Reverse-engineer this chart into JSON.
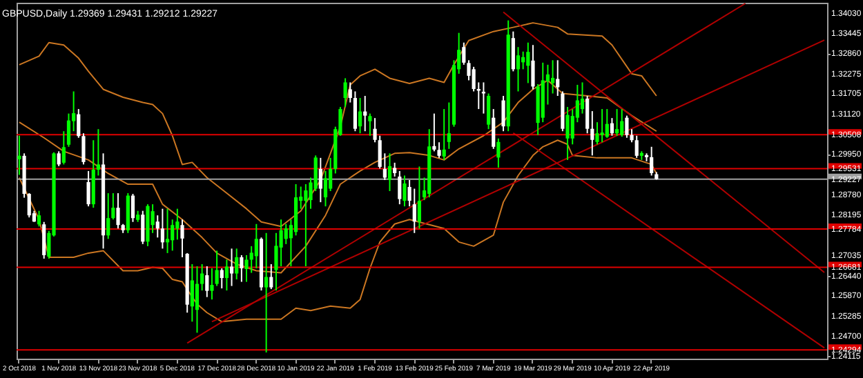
{
  "chart_data": {
    "type": "candlestick",
    "title": "GBPUSD,Daily  1.29369 1.29431 1.29212 1.29227",
    "categories": [
      "2 Oct 2018",
      null,
      null,
      null,
      null,
      null,
      null,
      null,
      "1 Nov 2018",
      null,
      null,
      null,
      null,
      null,
      null,
      null,
      "13 Nov 2018",
      null,
      null,
      null,
      null,
      null,
      null,
      null,
      "23 Nov 2018",
      null,
      null,
      null,
      null,
      null,
      null,
      null,
      "5 Dec 2018",
      null,
      null,
      null,
      null,
      null,
      null,
      null,
      "17 Dec 2018",
      null,
      null,
      null,
      null,
      null,
      null,
      null,
      "28 Dec 2018",
      null,
      null,
      null,
      null,
      null,
      null,
      null,
      "10 Jan 2019",
      null,
      null,
      null,
      null,
      null,
      null,
      null,
      "22 Jan 2019",
      null,
      null,
      null,
      null,
      null,
      null,
      null,
      "1 Feb 2019",
      null,
      null,
      null,
      null,
      null,
      null,
      null,
      "13 Feb 2019",
      null,
      null,
      null,
      null,
      null,
      null,
      null,
      "25 Feb 2019",
      null,
      null,
      null,
      null,
      null,
      null,
      null,
      "7 Mar 2019",
      null,
      null,
      null,
      null,
      null,
      null,
      null,
      "19 Mar 2019",
      null,
      null,
      null,
      null,
      null,
      null,
      null,
      "29 Mar 2019",
      null,
      null,
      null,
      null,
      null,
      null,
      null,
      "10 Apr 2019",
      null,
      null,
      null,
      null,
      null,
      null,
      null,
      "22 Apr 2019",
      null,
      null,
      null,
      null,
      null,
      null,
      null,
      null,
      null,
      null,
      null,
      null,
      null,
      null,
      null,
      null,
      null,
      null,
      null,
      null,
      null,
      null,
      null,
      null,
      null,
      null,
      null,
      null,
      null,
      null,
      null,
      null,
      null,
      null,
      null
    ],
    "ohlc": [
      [
        1.298,
        1.3048,
        1.2935,
        1.299
      ],
      [
        1.299,
        1.2997,
        1.2869,
        1.288
      ],
      [
        1.288,
        1.2882,
        1.2812,
        1.2818
      ],
      [
        1.2824,
        1.2831,
        1.2799,
        1.28
      ],
      [
        1.2792,
        1.2831,
        1.2786,
        1.2818
      ],
      [
        1.2792,
        1.2799,
        1.2693,
        1.2703
      ],
      [
        1.2699,
        1.2773,
        1.2693,
        1.2767
      ],
      [
        1.276,
        1.3,
        1.2757,
        1.2997
      ],
      [
        1.2997,
        1.3003,
        1.296,
        1.2965
      ],
      [
        1.297,
        1.3061,
        1.2965,
        1.3015
      ],
      [
        1.3022,
        1.3112,
        1.3016,
        1.3092
      ],
      [
        1.309,
        1.3176,
        1.3061,
        1.3113
      ],
      [
        1.311,
        1.3125,
        1.3042,
        1.3047
      ],
      [
        1.3047,
        1.3055,
        1.2965,
        1.2972
      ],
      [
        1.2914,
        1.2946,
        1.2844,
        1.285
      ],
      [
        1.285,
        1.3035,
        1.284,
        1.295
      ],
      [
        1.295,
        1.3067,
        1.2933,
        1.2965
      ],
      [
        1.2965,
        1.2997,
        1.2722,
        1.276
      ],
      [
        1.276,
        1.2882,
        1.275,
        1.281
      ],
      [
        1.281,
        1.2882,
        1.2806,
        1.284
      ],
      [
        1.284,
        1.2882,
        1.278,
        1.279
      ],
      [
        1.279,
        1.2793,
        1.2767,
        1.2775
      ],
      [
        1.2775,
        1.2882,
        1.2767,
        1.2875
      ],
      [
        1.2875,
        1.288,
        1.2799,
        1.281
      ],
      [
        1.2805,
        1.2831,
        1.2799,
        1.282
      ],
      [
        1.282,
        1.2831,
        1.2735,
        1.2742
      ],
      [
        1.2742,
        1.285,
        1.2729,
        1.2845
      ],
      [
        1.279,
        1.285,
        1.2767,
        1.283
      ],
      [
        1.28,
        1.2818,
        1.2754,
        1.278
      ],
      [
        1.278,
        1.2837,
        1.2722,
        1.274
      ],
      [
        1.274,
        1.2837,
        1.2709,
        1.275
      ],
      [
        1.2746,
        1.2806,
        1.2716,
        1.279
      ],
      [
        1.278,
        1.2837,
        1.2748,
        1.28
      ],
      [
        1.279,
        1.2806,
        1.2697,
        1.2751
      ],
      [
        1.2707,
        1.2709,
        1.2537,
        1.256
      ],
      [
        1.2555,
        1.2677,
        1.2511,
        1.263
      ],
      [
        1.2545,
        1.2671,
        1.2479,
        1.262
      ],
      [
        1.262,
        1.2677,
        1.2601,
        1.265
      ],
      [
        1.2645,
        1.2671,
        1.2582,
        1.26
      ],
      [
        1.26,
        1.2665,
        1.2575,
        1.2617
      ],
      [
        1.262,
        1.2716,
        1.2614,
        1.266
      ],
      [
        1.266,
        1.2665,
        1.2607,
        1.2637
      ],
      [
        1.2637,
        1.269,
        1.2601,
        1.267
      ],
      [
        1.267,
        1.2722,
        1.2614,
        1.265
      ],
      [
        1.265,
        1.2722,
        1.2633,
        1.2697
      ],
      [
        1.2697,
        1.2703,
        1.2626,
        1.2665
      ],
      [
        1.2663,
        1.2703,
        1.2626,
        1.269
      ],
      [
        1.269,
        1.2729,
        1.2652,
        1.271
      ],
      [
        1.27,
        1.2793,
        1.2665,
        1.275
      ],
      [
        1.275,
        1.2754,
        1.2601,
        1.261
      ],
      [
        1.261,
        1.2767,
        1.2422,
        1.264
      ],
      [
        1.264,
        1.2677,
        1.2605,
        1.261
      ],
      [
        1.266,
        1.2767,
        1.2601,
        1.273
      ],
      [
        1.2725,
        1.2806,
        1.2671,
        1.2775
      ],
      [
        1.275,
        1.2793,
        1.2735,
        1.278
      ],
      [
        1.2752,
        1.2806,
        1.2671,
        1.279
      ],
      [
        1.277,
        1.2908,
        1.276,
        1.287
      ],
      [
        1.286,
        1.2901,
        1.2837,
        1.2872
      ],
      [
        1.286,
        1.2908,
        1.2671,
        1.289
      ],
      [
        1.2862,
        1.2927,
        1.2837,
        1.2913
      ],
      [
        1.2895,
        1.2991,
        1.2888,
        1.2985
      ],
      [
        1.2952,
        1.2984,
        1.2856,
        1.2895
      ],
      [
        1.287,
        1.2946,
        1.2844,
        1.2925
      ],
      [
        1.2895,
        1.2984,
        1.2888,
        1.2952
      ],
      [
        1.2952,
        1.3074,
        1.2939,
        1.3067
      ],
      [
        1.305,
        1.3131,
        1.3048,
        1.3125
      ],
      [
        1.3157,
        1.3214,
        1.3131,
        1.3202
      ],
      [
        1.3182,
        1.3202,
        1.3144,
        1.3157
      ],
      [
        1.3157,
        1.3176,
        1.3061,
        1.3068
      ],
      [
        1.3075,
        1.3157,
        1.3055,
        1.3118
      ],
      [
        1.3118,
        1.3163,
        1.3061,
        1.3106
      ],
      [
        1.309,
        1.3112,
        1.3048,
        1.3105
      ],
      [
        1.3068,
        1.3099,
        1.3029,
        1.3036
      ],
      [
        1.3035,
        1.3048,
        1.2953,
        1.2958
      ],
      [
        1.2952,
        1.2997,
        1.292,
        1.2927
      ],
      [
        1.292,
        1.2997,
        1.2888,
        1.296
      ],
      [
        1.2955,
        1.297,
        1.293,
        1.294
      ],
      [
        1.293,
        1.2946,
        1.285,
        1.2865
      ],
      [
        1.286,
        1.2933,
        1.2844,
        1.291
      ],
      [
        1.29,
        1.292,
        1.2844,
        1.286
      ],
      [
        1.285,
        1.2895,
        1.2767,
        1.28
      ],
      [
        1.28,
        1.2959,
        1.278,
        1.286
      ],
      [
        1.287,
        1.2927,
        1.2862,
        1.289
      ],
      [
        1.288,
        1.3067,
        1.287,
        1.3017
      ],
      [
        1.3018,
        1.3112,
        1.3003,
        1.3008
      ],
      [
        1.3007,
        1.3029,
        1.2984,
        1.299
      ],
      [
        1.2988,
        1.3125,
        1.2978,
        1.3008
      ],
      [
        1.303,
        1.3144,
        1.301,
        1.3055
      ],
      [
        1.308,
        1.3266,
        1.3074,
        1.3252
      ],
      [
        1.324,
        1.3345,
        1.3227,
        1.3296
      ],
      [
        1.3304,
        1.3317,
        1.3253,
        1.3259
      ],
      [
        1.3258,
        1.3266,
        1.3208,
        1.3221
      ],
      [
        1.324,
        1.3247,
        1.3176,
        1.3183
      ],
      [
        1.3183,
        1.3202,
        1.3125,
        1.3178
      ],
      [
        1.3175,
        1.3202,
        1.3112,
        1.317
      ],
      [
        1.308,
        1.317,
        1.3067,
        1.3163
      ],
      [
        1.31,
        1.3125,
        1.301,
        1.3016
      ],
      [
        1.2985,
        1.304,
        1.2956,
        1.303
      ],
      [
        1.315,
        1.3163,
        1.3061,
        1.3075
      ],
      [
        1.3075,
        1.3381,
        1.3061,
        1.334
      ],
      [
        1.333,
        1.3349,
        1.3234,
        1.324
      ],
      [
        1.324,
        1.3304,
        1.3176,
        1.328
      ],
      [
        1.326,
        1.3291,
        1.324,
        1.3275
      ],
      [
        1.325,
        1.3317,
        1.32,
        1.329
      ],
      [
        1.3265,
        1.331,
        1.3182,
        1.319
      ],
      [
        1.3085,
        1.3197,
        1.305,
        1.319
      ],
      [
        1.31,
        1.3259,
        1.3087,
        1.3208
      ],
      [
        1.3205,
        1.3253,
        1.3138,
        1.3225
      ],
      [
        1.32,
        1.3266,
        1.317,
        1.3215
      ],
      [
        1.3212,
        1.3266,
        1.3163,
        1.3188
      ],
      [
        1.317,
        1.3176,
        1.3061,
        1.3068
      ],
      [
        1.304,
        1.3131,
        1.2978,
        1.3108
      ],
      [
        1.304,
        1.3125,
        1.3023,
        1.3105
      ],
      [
        1.31,
        1.3195,
        1.3087,
        1.315
      ],
      [
        1.3125,
        1.3202,
        1.3112,
        1.3155
      ],
      [
        1.3155,
        1.3163,
        1.3055,
        1.3068
      ],
      [
        1.3068,
        1.3119,
        1.2991,
        1.3036
      ],
      [
        1.303,
        1.3087,
        1.3023,
        1.3055
      ],
      [
        1.305,
        1.3125,
        1.3029,
        1.3057
      ],
      [
        1.3045,
        1.3125,
        1.3042,
        1.3082
      ],
      [
        1.3084,
        1.3099,
        1.3048,
        1.3055
      ],
      [
        1.3055,
        1.3125,
        1.3048,
        1.3067
      ],
      [
        1.305,
        1.3125,
        1.3045,
        1.309
      ],
      [
        1.31,
        1.3106,
        1.3042,
        1.305
      ],
      [
        1.305,
        1.3067,
        1.3029,
        1.3035
      ],
      [
        1.3035,
        1.3048,
        1.2984,
        1.299
      ],
      [
        1.299,
        1.3003,
        1.2978,
        1.2998
      ],
      [
        1.2992,
        1.2997,
        1.2974,
        1.2986
      ],
      [
        1.2986,
        1.3016,
        1.2933,
        1.294
      ],
      [
        1.29369,
        1.29431,
        1.29212,
        1.29227
      ],
      null,
      null,
      null,
      null,
      null,
      null,
      null,
      null,
      null,
      null,
      null,
      null,
      null,
      null,
      null,
      null,
      null,
      null,
      null,
      null,
      null,
      null,
      null,
      null,
      null,
      null,
      null,
      null,
      null,
      null,
      null,
      null,
      null,
      null
    ],
    "series": [
      {
        "type": "line",
        "color": "#cc7722",
        "values": [
          1.3253,
          null,
          null,
          null,
          1.3278,
          null,
          1.3317,
          null,
          null,
          1.331,
          null,
          null,
          1.3272,
          null,
          1.3234,
          null,
          null,
          1.3182,
          null,
          null,
          null,
          1.3159,
          null,
          null,
          null,
          1.3144,
          null,
          1.3138,
          null,
          1.3112,
          null,
          1.3048,
          null,
          1.2965,
          null,
          1.2971,
          null,
          null,
          1.2927,
          null,
          null,
          null,
          1.2882,
          null,
          null,
          null,
          1.2837,
          null,
          null,
          1.2799,
          null,
          null,
          null,
          1.2786,
          null,
          null,
          null,
          1.2831,
          null,
          null,
          null,
          1.292,
          null,
          1.2997,
          null,
          1.3074,
          null,
          1.3195,
          null,
          1.3221,
          null,
          null,
          1.324,
          null,
          null,
          1.3214,
          null,
          null,
          null,
          1.3199,
          null,
          null,
          null,
          1.3214,
          null,
          null,
          1.3202,
          null,
          1.3253,
          null,
          null,
          1.3323,
          null,
          null,
          null,
          null,
          1.3349,
          null,
          null,
          null,
          1.3361,
          null,
          null,
          null,
          1.3374,
          null,
          null,
          null,
          null,
          1.3361,
          null,
          1.3342,
          null,
          null,
          null,
          null,
          null,
          null,
          1.3336,
          null,
          1.331,
          null,
          null,
          null,
          1.3227,
          null,
          1.3221,
          null,
          null,
          1.3163,
          null,
          null,
          null,
          null,
          null,
          null,
          null,
          null,
          null,
          null,
          null,
          null,
          null,
          null,
          null,
          null,
          null,
          null,
          null,
          null,
          null,
          null,
          null,
          null,
          null,
          null,
          null,
          null,
          null,
          null,
          null,
          null,
          null,
          null
        ]
      },
      {
        "type": "line",
        "color": "#cc7722",
        "values": [
          1.3087,
          null,
          null,
          null,
          null,
          1.3042,
          null,
          null,
          null,
          1.3003,
          null,
          null,
          null,
          null,
          1.2978,
          null,
          null,
          null,
          1.2939,
          null,
          null,
          null,
          1.2908,
          null,
          null,
          null,
          null,
          1.2908,
          null,
          1.285,
          null,
          null,
          null,
          1.2806,
          null,
          null,
          null,
          1.2754,
          null,
          null,
          1.2709,
          null,
          null,
          null,
          1.2677,
          null,
          null,
          null,
          1.2658,
          null,
          null,
          null,
          null,
          1.2652,
          null,
          null,
          null,
          null,
          1.2729,
          null,
          null,
          null,
          1.2818,
          null,
          null,
          1.2908,
          null,
          null,
          null,
          1.2946,
          null,
          null,
          1.2971,
          null,
          null,
          null,
          1.2997,
          null,
          null,
          1.2999,
          null,
          null,
          null,
          1.2991,
          null,
          null,
          1.2978,
          null,
          null,
          1.301,
          null,
          null,
          null,
          null,
          1.3048,
          null,
          null,
          null,
          1.3087,
          null,
          null,
          1.3144,
          null,
          null,
          1.3182,
          null,
          null,
          1.3208,
          null,
          null,
          1.317,
          null,
          null,
          null,
          null,
          1.3163,
          null,
          null,
          null,
          1.3157,
          null,
          null,
          null,
          null,
          1.3106,
          null,
          null,
          null,
          null,
          1.3061,
          null,
          null,
          null,
          null,
          null,
          null,
          null,
          null,
          null,
          null,
          null,
          null,
          null,
          null,
          null,
          null,
          null,
          null,
          null,
          null,
          null,
          null,
          null,
          null,
          null,
          null,
          null,
          null,
          null,
          null,
          null,
          null,
          null,
          null
        ]
      },
      {
        "type": "line",
        "color": "#cc7722",
        "values": [
          1.2927,
          null,
          null,
          null,
          1.2806,
          null,
          1.2697,
          null,
          null,
          null,
          null,
          1.2697,
          null,
          null,
          1.2709,
          null,
          null,
          1.2716,
          null,
          null,
          null,
          1.2658,
          null,
          null,
          1.2658,
          null,
          null,
          1.2668,
          null,
          1.2665,
          null,
          1.2633,
          null,
          1.2626,
          null,
          1.2582,
          1.2562,
          null,
          1.2537,
          null,
          null,
          1.2511,
          null,
          null,
          null,
          null,
          1.2518,
          null,
          null,
          1.2518,
          null,
          null,
          null,
          1.2518,
          null,
          null,
          1.255,
          null,
          null,
          1.2543,
          null,
          null,
          null,
          1.2556,
          null,
          null,
          null,
          1.255,
          null,
          1.2575,
          null,
          1.2665,
          null,
          1.2741,
          null,
          null,
          1.2793,
          null,
          null,
          1.2806,
          null,
          null,
          null,
          null,
          null,
          null,
          1.278,
          null,
          null,
          1.2741,
          null,
          null,
          1.2729,
          null,
          null,
          null,
          1.2761,
          null,
          1.2856,
          null,
          null,
          1.2933,
          null,
          null,
          1.2991,
          null,
          1.3016,
          null,
          null,
          1.3035,
          null,
          1.3023,
          1.2991,
          null,
          null,
          null,
          null,
          1.2984,
          null,
          null,
          null,
          null,
          null,
          null,
          1.2984,
          null,
          null,
          null,
          1.2965,
          1.2939,
          null,
          null,
          null,
          null,
          null,
          null,
          null,
          null,
          null,
          null,
          null,
          null,
          null,
          null,
          null,
          null,
          null,
          null,
          null,
          null,
          null,
          null,
          null,
          null,
          null,
          null,
          null,
          null,
          null,
          null,
          null,
          null,
          null,
          null
        ]
      },
      {
        "type": "line",
        "color": "#b00000",
        "values": [
          null,
          null,
          null,
          null,
          null,
          null,
          null,
          null,
          null,
          null,
          null,
          null,
          null,
          null,
          null,
          null,
          null,
          null,
          null,
          null,
          null,
          null,
          null,
          null,
          null,
          null,
          null,
          null,
          null,
          null,
          null,
          null,
          null,
          null,
          1.2449,
          null,
          null,
          null,
          null,
          null,
          null,
          null,
          null,
          null,
          null,
          null,
          null,
          null,
          null,
          null,
          null,
          null,
          null,
          null,
          null,
          null,
          null,
          null,
          null,
          null,
          null,
          null,
          null,
          null,
          null,
          null,
          null,
          null,
          null,
          null,
          null,
          null,
          null,
          null,
          null,
          null,
          null,
          null,
          null,
          null,
          null,
          null,
          null,
          null,
          null,
          null,
          null,
          null,
          null,
          null,
          null,
          null,
          null,
          null,
          null,
          null,
          null,
          null,
          null,
          null,
          null,
          null,
          null,
          null,
          null,
          null,
          null,
          null,
          null,
          null,
          null,
          null,
          null,
          null,
          null,
          null,
          null,
          null,
          null,
          null,
          null,
          null,
          null,
          null,
          null,
          null,
          null,
          null,
          null,
          null,
          null,
          null,
          null,
          null,
          null,
          null,
          null,
          null,
          null,
          null,
          null,
          null,
          null,
          null,
          null,
          null,
          null,
          1.343,
          null,
          null,
          null,
          null,
          null,
          null,
          null,
          null,
          null,
          null,
          null,
          null,
          null,
          null,
          null,
          null
        ]
      },
      {
        "type": "line",
        "color": "#b00000",
        "values": [
          null,
          null,
          null,
          null,
          null,
          null,
          null,
          null,
          null,
          null,
          null,
          null,
          null,
          null,
          null,
          null,
          null,
          null,
          null,
          null,
          null,
          null,
          null,
          null,
          null,
          null,
          null,
          null,
          null,
          null,
          null,
          null,
          null,
          null,
          null,
          null,
          null,
          null,
          null,
          1.2511,
          null,
          null,
          null,
          null,
          null,
          null,
          null,
          null,
          null,
          null,
          null,
          null,
          null,
          null,
          null,
          null,
          null,
          null,
          null,
          null,
          null,
          null,
          null,
          null,
          null,
          null,
          null,
          null,
          null,
          null,
          null,
          null,
          null,
          null,
          null,
          null,
          null,
          null,
          null,
          null,
          null,
          null,
          null,
          null,
          null,
          null,
          null,
          null,
          null,
          null,
          null,
          null,
          null,
          null,
          null,
          null,
          null,
          null,
          null,
          null,
          null,
          null,
          null,
          null,
          null,
          null,
          null,
          null,
          null,
          null,
          null,
          null,
          null,
          null,
          null,
          null,
          null,
          null,
          null,
          null,
          null,
          null,
          null,
          null,
          null,
          null,
          null,
          null,
          null,
          null,
          null,
          null,
          null,
          null,
          null,
          null,
          null,
          null,
          null,
          null,
          null,
          null,
          null,
          null,
          null,
          null,
          null,
          null,
          null,
          null,
          null,
          null,
          null,
          null,
          null,
          null,
          null,
          null,
          null,
          null,
          null,
          null,
          null,
          1.3324
        ]
      },
      {
        "type": "line",
        "color": "#b00000",
        "values": [
          null,
          null,
          null,
          null,
          null,
          null,
          null,
          null,
          null,
          null,
          null,
          null,
          null,
          null,
          null,
          null,
          null,
          null,
          null,
          null,
          null,
          null,
          null,
          null,
          null,
          null,
          null,
          null,
          null,
          null,
          null,
          null,
          null,
          null,
          null,
          null,
          null,
          null,
          null,
          null,
          null,
          null,
          null,
          null,
          null,
          null,
          null,
          null,
          null,
          null,
          null,
          null,
          null,
          null,
          null,
          null,
          null,
          null,
          null,
          null,
          null,
          null,
          null,
          null,
          null,
          null,
          null,
          null,
          null,
          null,
          null,
          null,
          null,
          null,
          null,
          null,
          null,
          null,
          null,
          null,
          null,
          null,
          null,
          null,
          null,
          null,
          null,
          null,
          null,
          null,
          null,
          null,
          null,
          null,
          null,
          null,
          null,
          null,
          1.3405,
          null,
          null,
          null,
          null,
          null,
          null,
          null,
          null,
          null,
          null,
          null,
          null,
          null,
          null,
          null,
          null,
          null,
          null,
          null,
          null,
          null,
          null,
          null,
          null,
          null,
          null,
          null,
          null,
          null,
          null,
          null,
          null,
          null,
          null,
          null,
          null,
          null,
          null,
          null,
          null,
          null,
          null,
          null,
          null,
          null,
          null,
          null,
          null,
          null,
          null,
          null,
          null,
          null,
          null,
          null,
          null,
          null,
          null,
          null,
          null,
          null,
          null,
          null,
          null,
          1.2653
        ]
      },
      {
        "type": "line",
        "color": "#b00000",
        "values": [
          null,
          null,
          null,
          null,
          null,
          null,
          null,
          null,
          null,
          null,
          null,
          null,
          null,
          null,
          null,
          null,
          null,
          null,
          null,
          null,
          null,
          null,
          null,
          null,
          null,
          null,
          null,
          null,
          null,
          null,
          null,
          null,
          null,
          null,
          null,
          null,
          null,
          null,
          null,
          null,
          null,
          null,
          null,
          null,
          null,
          null,
          null,
          null,
          null,
          null,
          null,
          null,
          null,
          null,
          null,
          null,
          null,
          null,
          null,
          null,
          null,
          null,
          null,
          null,
          null,
          null,
          null,
          null,
          null,
          null,
          null,
          null,
          null,
          null,
          null,
          null,
          null,
          null,
          null,
          null,
          null,
          null,
          null,
          null,
          null,
          null,
          null,
          null,
          null,
          null,
          null,
          null,
          null,
          null,
          null,
          null,
          null,
          null,
          null,
          null,
          1.3056,
          null,
          null,
          null,
          null,
          null,
          null,
          null,
          null,
          null,
          null,
          null,
          null,
          null,
          null,
          null,
          null,
          null,
          null,
          null,
          null,
          null,
          null,
          null,
          null,
          null,
          null,
          null,
          null,
          null,
          null,
          null,
          null,
          null,
          null,
          null,
          null,
          null,
          null,
          null,
          null,
          null,
          null,
          null,
          null,
          null,
          null,
          null,
          null,
          null,
          null,
          null,
          null,
          null,
          null,
          null,
          null,
          null,
          null,
          null,
          null,
          null,
          null,
          1.2435
        ]
      }
    ],
    "ylim": [
      1.2404,
      1.3432
    ],
    "yticks": [
      {
        "value": 1.3403,
        "label": "1.34030"
      },
      {
        "value": 1.33445,
        "label": "1.33445"
      },
      {
        "value": 1.3286,
        "label": "1.32860"
      },
      {
        "value": 1.32275,
        "label": "1.32275"
      },
      {
        "value": 1.31705,
        "label": "1.31705"
      },
      {
        "value": 1.3112,
        "label": "1.31120"
      },
      {
        "value": 1.2995,
        "label": "1.29950"
      },
      {
        "value": 1.2878,
        "label": "1.28780"
      },
      {
        "value": 1.28195,
        "label": "1.28195"
      },
      {
        "value": 1.27035,
        "label": "1.27035"
      },
      {
        "value": 1.2644,
        "label": "1.26440"
      },
      {
        "value": 1.2587,
        "label": "1.25870"
      },
      {
        "value": 1.25285,
        "label": "1.25285"
      },
      {
        "value": 1.247,
        "label": "1.24700"
      },
      {
        "value": 1.24115,
        "label": "1.24115"
      }
    ],
    "ref_lines": [
      {
        "axis": "y",
        "value": 1.30508,
        "label": "1.30508",
        "color": "#e00000"
      },
      {
        "axis": "y",
        "value": 1.29531,
        "label": "1.29531",
        "color": "#e00000"
      },
      {
        "axis": "y",
        "value": 1.29227,
        "label": "1.29227",
        "color": "#a0a0a0"
      },
      {
        "axis": "y",
        "value": 1.27784,
        "label": "1.27784",
        "color": "#e00000"
      },
      {
        "axis": "y",
        "value": 1.26681,
        "label": "1.26681",
        "color": "#e00000"
      },
      {
        "axis": "y",
        "value": 1.24294,
        "label": "1.24294",
        "color": "#e00000"
      }
    ]
  }
}
